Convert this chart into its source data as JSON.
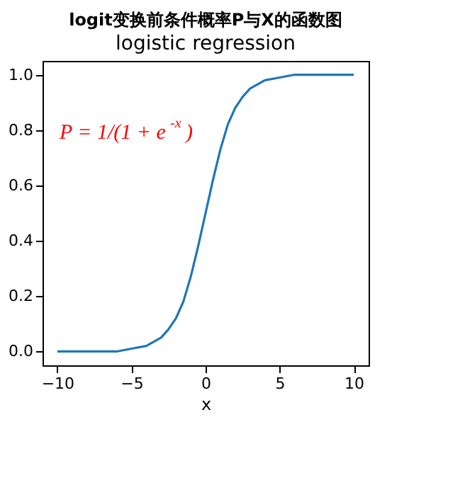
{
  "chart_data": {
    "type": "line",
    "title": "logit变换前条件概率P与X的函数图",
    "subtitle": "logistic regression",
    "xlabel": "x",
    "x": [
      -10,
      -8,
      -6,
      -5,
      -4,
      -3,
      -2.5,
      -2,
      -1.5,
      -1,
      -0.5,
      0,
      0.5,
      1,
      1.5,
      2,
      2.5,
      3,
      4,
      5,
      6,
      8,
      10
    ],
    "series": [
      {
        "color": "#1f77b4",
        "values": [
          0.0,
          0.0,
          0.0,
          0.01,
          0.02,
          0.05,
          0.08,
          0.12,
          0.18,
          0.27,
          0.38,
          0.5,
          0.62,
          0.73,
          0.82,
          0.88,
          0.92,
          0.95,
          0.98,
          0.99,
          1.0,
          1.0,
          1.0
        ]
      }
    ],
    "xlim": [
      -11,
      11
    ],
    "ylim": [
      -0.05,
      1.05
    ],
    "xticks": [
      -10,
      -5,
      0,
      5,
      10
    ],
    "yticks": [
      {
        "value": 0,
        "label": "0.0"
      },
      {
        "value": 0.2,
        "label": "0.2"
      },
      {
        "value": 0.4,
        "label": "0.4"
      },
      {
        "value": 0.6,
        "label": "0.6"
      },
      {
        "value": 0.8,
        "label": "0.8"
      },
      {
        "value": 1,
        "label": "1.0"
      }
    ],
    "annotations": [
      "P = 1/(1 + e$^{-x}$)"
    ],
    "grid": false,
    "marker": "none",
    "line_style": "solid"
  }
}
